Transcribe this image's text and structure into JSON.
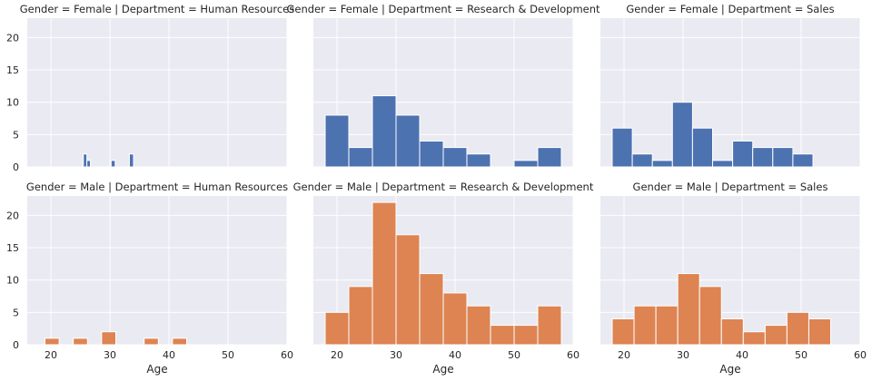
{
  "chart_data": {
    "type": "bar",
    "layout": {
      "rows": [
        "Female",
        "Male"
      ],
      "cols": [
        "Human Resources",
        "Research & Development",
        "Sales"
      ]
    },
    "x_ticks": [
      20,
      30,
      40,
      50,
      60
    ],
    "y_ticks": [
      0,
      5,
      10,
      15,
      20
    ],
    "xlim": [
      16,
      60
    ],
    "ylim": [
      0,
      23
    ],
    "xlabel": "Age",
    "ylabel": "",
    "sharey": true,
    "grid": true,
    "colors": {
      "Female": "#4c72b0",
      "Male": "#dd8452"
    },
    "panels": [
      {
        "title": "Gender = Female | Department = Human Resources",
        "gender": "Female",
        "bins": [
          [
            25.5,
            26.1,
            2
          ],
          [
            26.1,
            26.7,
            1
          ],
          [
            30.2,
            30.9,
            1
          ],
          [
            33.3,
            34.0,
            2
          ]
        ]
      },
      {
        "title": "Gender = Female | Department = Research & Development",
        "gender": "Female",
        "bins": [
          [
            18,
            22,
            8
          ],
          [
            22,
            26,
            3
          ],
          [
            26,
            30,
            11
          ],
          [
            30,
            34,
            8
          ],
          [
            34,
            38,
            4
          ],
          [
            38,
            42,
            3
          ],
          [
            42,
            46,
            2
          ],
          [
            46,
            50,
            0
          ],
          [
            50,
            54,
            1
          ],
          [
            54,
            58,
            3
          ]
        ]
      },
      {
        "title": "Gender = Female | Department = Sales",
        "gender": "Female",
        "bins": [
          [
            18,
            21.4,
            6
          ],
          [
            21.4,
            24.8,
            2
          ],
          [
            24.8,
            28.2,
            1
          ],
          [
            28.2,
            31.6,
            10
          ],
          [
            31.6,
            35,
            6
          ],
          [
            35,
            38.4,
            1
          ],
          [
            38.4,
            41.8,
            4
          ],
          [
            41.8,
            45.2,
            3
          ],
          [
            45.2,
            48.6,
            3
          ],
          [
            48.6,
            52,
            2
          ]
        ]
      },
      {
        "title": "Gender = Male | Department = Human Resources",
        "gender": "Male",
        "bins": [
          [
            19,
            21.4,
            1
          ],
          [
            21.4,
            23.8,
            0
          ],
          [
            23.8,
            26.2,
            1
          ],
          [
            26.2,
            28.6,
            0
          ],
          [
            28.6,
            31,
            2
          ],
          [
            31,
            33.4,
            0
          ],
          [
            33.4,
            35.8,
            0
          ],
          [
            35.8,
            38.2,
            1
          ],
          [
            38.2,
            40.6,
            0
          ],
          [
            40.6,
            43,
            1
          ]
        ]
      },
      {
        "title": "Gender = Male | Department = Research & Development",
        "gender": "Male",
        "bins": [
          [
            18,
            22,
            5
          ],
          [
            22,
            26,
            9
          ],
          [
            26,
            30,
            22
          ],
          [
            30,
            34,
            17
          ],
          [
            34,
            38,
            11
          ],
          [
            38,
            42,
            8
          ],
          [
            42,
            46,
            6
          ],
          [
            46,
            50,
            3
          ],
          [
            50,
            54,
            3
          ],
          [
            54,
            58,
            6
          ]
        ]
      },
      {
        "title": "Gender = Male | Department = Sales",
        "gender": "Male",
        "bins": [
          [
            18,
            21.7,
            4
          ],
          [
            21.7,
            25.4,
            6
          ],
          [
            25.4,
            29.1,
            6
          ],
          [
            29.1,
            32.8,
            11
          ],
          [
            32.8,
            36.5,
            9
          ],
          [
            36.5,
            40.2,
            4
          ],
          [
            40.2,
            43.9,
            2
          ],
          [
            43.9,
            47.6,
            3
          ],
          [
            47.6,
            51.3,
            5
          ],
          [
            51.3,
            55,
            4
          ]
        ]
      }
    ]
  }
}
